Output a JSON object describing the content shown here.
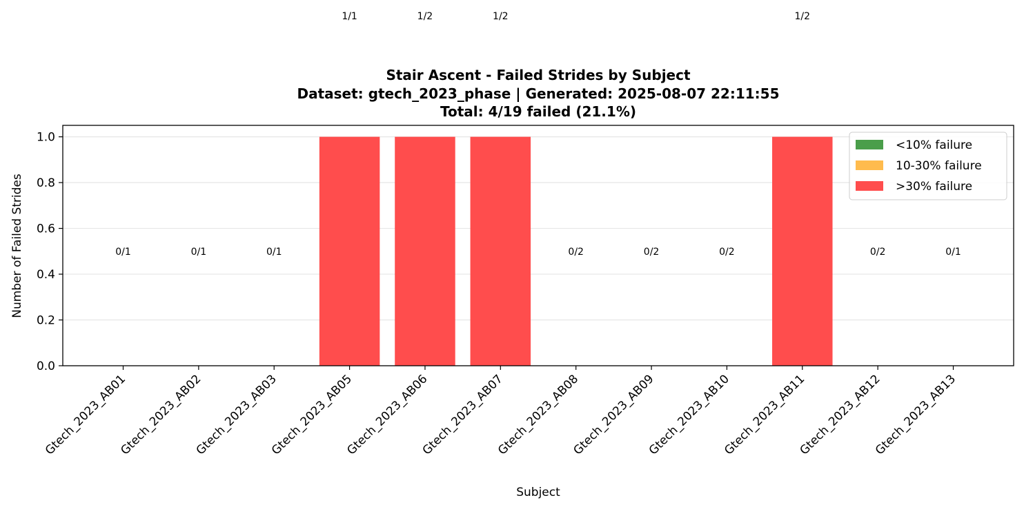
{
  "chart_data": {
    "type": "bar",
    "title_lines": [
      "Stair Ascent - Failed Strides by Subject",
      "Dataset: gtech_2023_phase | Generated: 2025-08-07 22:11:55",
      "Total: 4/19 failed (21.1%)"
    ],
    "xlabel": "Subject",
    "ylabel": "Number of Failed Strides",
    "ylim": [
      0,
      1.05
    ],
    "yticks": [
      "0.0",
      "0.2",
      "0.4",
      "0.6",
      "0.8",
      "1.0"
    ],
    "grid": "horizontal",
    "categories": [
      "Gtech_2023_AB01",
      "Gtech_2023_AB02",
      "Gtech_2023_AB03",
      "Gtech_2023_AB05",
      "Gtech_2023_AB06",
      "Gtech_2023_AB07",
      "Gtech_2023_AB08",
      "Gtech_2023_AB09",
      "Gtech_2023_AB10",
      "Gtech_2023_AB11",
      "Gtech_2023_AB12",
      "Gtech_2023_AB13"
    ],
    "values": [
      0,
      0,
      0,
      1,
      1,
      1,
      0,
      0,
      0,
      1,
      0,
      0
    ],
    "bar_labels": [
      "0/1",
      "0/1",
      "0/1",
      "1/1",
      "1/2",
      "1/2",
      "0/2",
      "0/2",
      "0/2",
      "1/2",
      "0/2",
      "0/1"
    ],
    "bar_color": "#ff4d4d",
    "legend": {
      "placement": "top-right",
      "entries": [
        {
          "label": "<10% failure",
          "color": "#4a9e4a"
        },
        {
          "label": "10-30% failure",
          "color": "#ffbb4d"
        },
        {
          "label": ">30% failure",
          "color": "#ff4d4d"
        }
      ]
    }
  }
}
